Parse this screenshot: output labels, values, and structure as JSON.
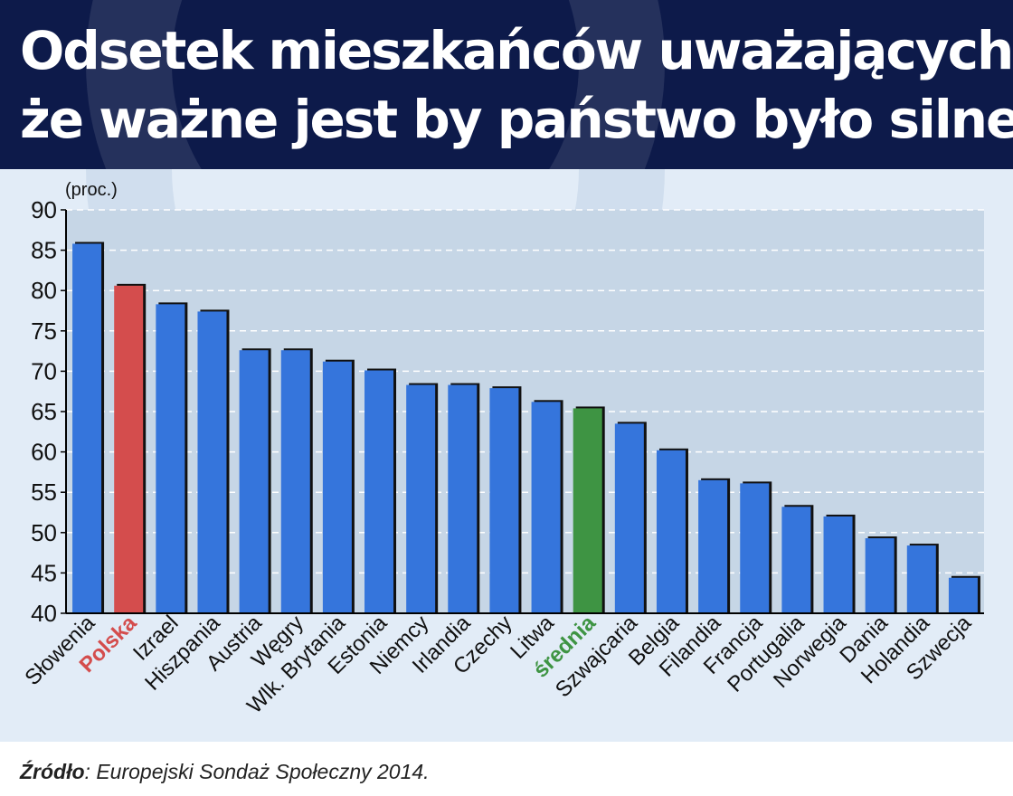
{
  "title_line1": "Odsetek mieszkańców uważających,",
  "title_line2": "że ważne jest by państwo było silne",
  "unit_label": "(proc.)",
  "source_label": "Źródło",
  "source_text": ": Europejski Sondaż Społeczny 2014.",
  "colors": {
    "bar": "#3575dc",
    "highlight_poland": "#d44d4d",
    "highlight_average": "#3e9443",
    "header": "#0d1a4a"
  },
  "chart_data": {
    "type": "bar",
    "title": "Odsetek mieszkańców uważających, że ważne jest by państwo było silne",
    "ylabel": "(proc.)",
    "ylim": [
      40,
      90
    ],
    "yticks": [
      40,
      45,
      50,
      55,
      60,
      65,
      70,
      75,
      80,
      85,
      90
    ],
    "grid": true,
    "categories": [
      "Słowenia",
      "Polska",
      "Izrael",
      "Hiszpania",
      "Austria",
      "Węgry",
      "Wlk. Brytania",
      "Estonia",
      "Niemcy",
      "Irlandia",
      "Czechy",
      "Litwa",
      "średnia",
      "Szwajcaria",
      "Belgia",
      "Filandia",
      "Francja",
      "Portugalia",
      "Norwegia",
      "Dania",
      "Holandia",
      "Szwecja"
    ],
    "values": [
      85.8,
      80.6,
      78.3,
      77.4,
      72.6,
      72.6,
      71.2,
      70.1,
      68.3,
      68.3,
      67.9,
      66.2,
      65.4,
      63.5,
      60.2,
      56.5,
      56.1,
      53.2,
      52.0,
      49.3,
      48.4,
      44.4
    ],
    "highlight": {
      "Polska": "poland",
      "średnia": "average"
    }
  }
}
